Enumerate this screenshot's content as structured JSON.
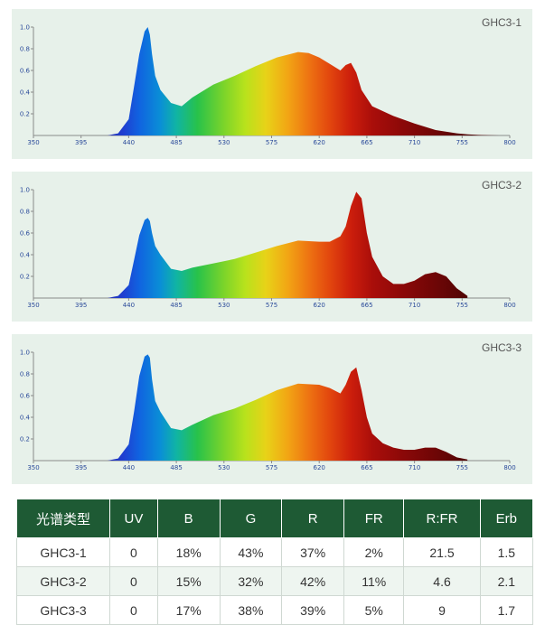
{
  "chart_data": [
    {
      "type": "area",
      "title": "GHC3-1",
      "x_ticks": [
        "350",
        "395",
        "440",
        "485",
        "530",
        "575",
        "620",
        "665",
        "710",
        "755",
        "800"
      ],
      "y_ticks": [
        "1.0",
        "0.8",
        "0.6",
        "0.4",
        "0.2"
      ],
      "xlim": [
        350,
        800
      ],
      "ylim": [
        0,
        1.0
      ],
      "x": [
        400,
        420,
        430,
        440,
        445,
        450,
        455,
        458,
        460,
        462,
        465,
        470,
        480,
        490,
        500,
        520,
        540,
        560,
        580,
        600,
        610,
        620,
        630,
        640,
        645,
        650,
        655,
        660,
        670,
        690,
        710,
        730,
        750,
        760,
        770,
        780,
        790,
        800
      ],
      "y": [
        0,
        0,
        0.02,
        0.15,
        0.45,
        0.75,
        0.96,
        1.0,
        0.93,
        0.75,
        0.55,
        0.42,
        0.3,
        0.27,
        0.35,
        0.47,
        0.55,
        0.64,
        0.72,
        0.77,
        0.76,
        0.72,
        0.66,
        0.6,
        0.65,
        0.67,
        0.58,
        0.42,
        0.27,
        0.18,
        0.11,
        0.05,
        0.02,
        0.01,
        0.005,
        0.002,
        0,
        0
      ]
    },
    {
      "type": "area",
      "title": "GHC3-2",
      "x_ticks": [
        "350",
        "395",
        "440",
        "485",
        "530",
        "575",
        "620",
        "665",
        "710",
        "755",
        "800"
      ],
      "y_ticks": [
        "1.0",
        "0.8",
        "0.6",
        "0.4",
        "0.2"
      ],
      "xlim": [
        350,
        800
      ],
      "ylim": [
        0,
        1.0
      ],
      "x": [
        420,
        430,
        440,
        445,
        450,
        455,
        458,
        460,
        462,
        465,
        470,
        480,
        490,
        500,
        520,
        540,
        560,
        580,
        600,
        620,
        630,
        640,
        645,
        650,
        655,
        660,
        665,
        670,
        680,
        690,
        700,
        710,
        720,
        730,
        740,
        750,
        760
      ],
      "y": [
        0,
        0.02,
        0.12,
        0.35,
        0.58,
        0.72,
        0.74,
        0.71,
        0.6,
        0.48,
        0.4,
        0.27,
        0.25,
        0.28,
        0.32,
        0.36,
        0.42,
        0.48,
        0.53,
        0.52,
        0.52,
        0.57,
        0.66,
        0.85,
        0.98,
        0.92,
        0.6,
        0.38,
        0.2,
        0.13,
        0.13,
        0.16,
        0.22,
        0.24,
        0.2,
        0.09,
        0.02
      ]
    },
    {
      "type": "area",
      "title": "GHC3-3",
      "x_ticks": [
        "350",
        "395",
        "440",
        "485",
        "530",
        "575",
        "620",
        "665",
        "710",
        "755",
        "800"
      ],
      "y_ticks": [
        "1.0",
        "0.8",
        "0.6",
        "0.4",
        "0.2"
      ],
      "xlim": [
        350,
        800
      ],
      "ylim": [
        0,
        1.0
      ],
      "x": [
        420,
        430,
        440,
        445,
        450,
        455,
        458,
        460,
        462,
        465,
        470,
        480,
        490,
        500,
        520,
        540,
        560,
        580,
        600,
        620,
        630,
        640,
        645,
        650,
        655,
        660,
        665,
        670,
        680,
        690,
        700,
        710,
        720,
        730,
        740,
        750,
        760
      ],
      "y": [
        0,
        0.02,
        0.15,
        0.45,
        0.78,
        0.96,
        0.98,
        0.95,
        0.75,
        0.55,
        0.45,
        0.3,
        0.28,
        0.33,
        0.42,
        0.48,
        0.56,
        0.65,
        0.71,
        0.7,
        0.67,
        0.62,
        0.7,
        0.82,
        0.86,
        0.65,
        0.4,
        0.25,
        0.16,
        0.12,
        0.1,
        0.1,
        0.12,
        0.12,
        0.08,
        0.03,
        0.01
      ]
    }
  ],
  "table": {
    "headers": [
      "光谱类型",
      "UV",
      "B",
      "G",
      "R",
      "FR",
      "R:FR",
      "Erb"
    ],
    "rows": [
      [
        "GHC3-1",
        "0",
        "18%",
        "43%",
        "37%",
        "2%",
        "21.5",
        "1.5"
      ],
      [
        "GHC3-2",
        "0",
        "15%",
        "32%",
        "42%",
        "11%",
        "4.6",
        "2.1"
      ],
      [
        "GHC3-3",
        "0",
        "17%",
        "38%",
        "39%",
        "5%",
        "9",
        "1.7"
      ]
    ]
  }
}
